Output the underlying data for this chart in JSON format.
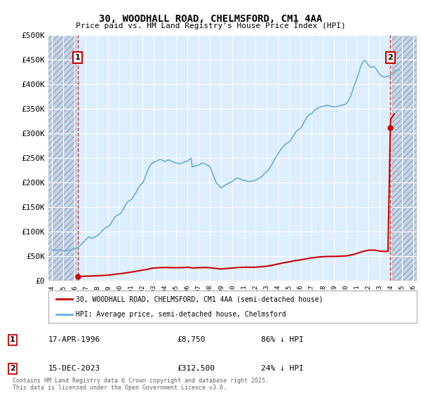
{
  "title": "30, WOODHALL ROAD, CHELMSFORD, CM1 4AA",
  "subtitle": "Price paid vs. HM Land Registry's House Price Index (HPI)",
  "ylim": [
    0,
    500000
  ],
  "yticks": [
    0,
    50000,
    100000,
    150000,
    200000,
    250000,
    300000,
    350000,
    400000,
    450000,
    500000
  ],
  "ytick_labels": [
    "£0",
    "£50K",
    "£100K",
    "£150K",
    "£200K",
    "£250K",
    "£300K",
    "£350K",
    "£400K",
    "£450K",
    "£500K"
  ],
  "xlim_start": 1993.7,
  "xlim_end": 2026.3,
  "left_hatch_end": 1996.2,
  "right_hatch_start": 2024.1,
  "background_color": "#ddeeff",
  "hatch_color": "#c5d5e8",
  "grid_color": "#ffffff",
  "property_color": "#cc0000",
  "hpi_color": "#6aaed6",
  "purchase_points": [
    {
      "year": 1996.29,
      "price": 8750,
      "label": "1"
    },
    {
      "year": 2023.96,
      "price": 312500,
      "label": "2"
    }
  ],
  "annotations": [
    {
      "label": "1",
      "date": "17-APR-1996",
      "price": "£8,750",
      "hpi": "86% ↓ HPI"
    },
    {
      "label": "2",
      "date": "15-DEC-2023",
      "price": "£312,500",
      "hpi": "24% ↓ HPI"
    }
  ],
  "legend_line1": "30, WOODHALL ROAD, CHELMSFORD, CM1 4AA (semi-detached house)",
  "legend_line2": "HPI: Average price, semi-detached house, Chelmsford",
  "copyright_text": "Contains HM Land Registry data © Crown copyright and database right 2025.\nThis data is licensed under the Open Government Licence v3.0.",
  "hpi_data": [
    [
      1994.0,
      64000
    ],
    [
      1994.08,
      63500
    ],
    [
      1994.17,
      63000
    ],
    [
      1994.25,
      62500
    ],
    [
      1994.33,
      62000
    ],
    [
      1994.42,
      62500
    ],
    [
      1994.5,
      63000
    ],
    [
      1994.58,
      63200
    ],
    [
      1994.67,
      63500
    ],
    [
      1994.75,
      63000
    ],
    [
      1994.83,
      62500
    ],
    [
      1994.92,
      62000
    ],
    [
      1995.0,
      61500
    ],
    [
      1995.08,
      61000
    ],
    [
      1995.17,
      61200
    ],
    [
      1995.25,
      61800
    ],
    [
      1995.33,
      62000
    ],
    [
      1995.42,
      62200
    ],
    [
      1995.5,
      62500
    ],
    [
      1995.58,
      63000
    ],
    [
      1995.67,
      63500
    ],
    [
      1995.75,
      64000
    ],
    [
      1995.83,
      64500
    ],
    [
      1995.92,
      65000
    ],
    [
      1996.0,
      65500
    ],
    [
      1996.08,
      66000
    ],
    [
      1996.17,
      67000
    ],
    [
      1996.25,
      68000
    ],
    [
      1996.33,
      69000
    ],
    [
      1996.42,
      70500
    ],
    [
      1996.5,
      72000
    ],
    [
      1996.58,
      74000
    ],
    [
      1996.67,
      76000
    ],
    [
      1996.75,
      78000
    ],
    [
      1996.83,
      80000
    ],
    [
      1996.92,
      82000
    ],
    [
      1997.0,
      84000
    ],
    [
      1997.08,
      86000
    ],
    [
      1997.17,
      88000
    ],
    [
      1997.25,
      90000
    ],
    [
      1997.33,
      89000
    ],
    [
      1997.42,
      88000
    ],
    [
      1997.5,
      87000
    ],
    [
      1997.58,
      87500
    ],
    [
      1997.67,
      88000
    ],
    [
      1997.75,
      89000
    ],
    [
      1997.83,
      90000
    ],
    [
      1997.92,
      91000
    ],
    [
      1998.0,
      92000
    ],
    [
      1998.08,
      93500
    ],
    [
      1998.17,
      95000
    ],
    [
      1998.25,
      97000
    ],
    [
      1998.33,
      99000
    ],
    [
      1998.42,
      101000
    ],
    [
      1998.5,
      103000
    ],
    [
      1998.58,
      105000
    ],
    [
      1998.67,
      107000
    ],
    [
      1998.75,
      108000
    ],
    [
      1998.83,
      109000
    ],
    [
      1998.92,
      110000
    ],
    [
      1999.0,
      111000
    ],
    [
      1999.08,
      113000
    ],
    [
      1999.17,
      115000
    ],
    [
      1999.25,
      118000
    ],
    [
      1999.33,
      121000
    ],
    [
      1999.42,
      124000
    ],
    [
      1999.5,
      127000
    ],
    [
      1999.58,
      130000
    ],
    [
      1999.67,
      132000
    ],
    [
      1999.75,
      133000
    ],
    [
      1999.83,
      134000
    ],
    [
      1999.92,
      135000
    ],
    [
      2000.0,
      136000
    ],
    [
      2000.08,
      138000
    ],
    [
      2000.17,
      140000
    ],
    [
      2000.25,
      143000
    ],
    [
      2000.33,
      146000
    ],
    [
      2000.42,
      150000
    ],
    [
      2000.5,
      154000
    ],
    [
      2000.58,
      157000
    ],
    [
      2000.67,
      160000
    ],
    [
      2000.75,
      162000
    ],
    [
      2000.83,
      163000
    ],
    [
      2000.92,
      164000
    ],
    [
      2001.0,
      165000
    ],
    [
      2001.08,
      167000
    ],
    [
      2001.17,
      170000
    ],
    [
      2001.25,
      173000
    ],
    [
      2001.33,
      176000
    ],
    [
      2001.42,
      179000
    ],
    [
      2001.5,
      182000
    ],
    [
      2001.58,
      186000
    ],
    [
      2001.67,
      190000
    ],
    [
      2001.75,
      193000
    ],
    [
      2001.83,
      195000
    ],
    [
      2001.92,
      197000
    ],
    [
      2002.0,
      199000
    ],
    [
      2002.08,
      202000
    ],
    [
      2002.17,
      206000
    ],
    [
      2002.25,
      211000
    ],
    [
      2002.33,
      216000
    ],
    [
      2002.42,
      221000
    ],
    [
      2002.5,
      226000
    ],
    [
      2002.58,
      230000
    ],
    [
      2002.67,
      234000
    ],
    [
      2002.75,
      237000
    ],
    [
      2002.83,
      239000
    ],
    [
      2002.92,
      240000
    ],
    [
      2003.0,
      241000
    ],
    [
      2003.08,
      242000
    ],
    [
      2003.17,
      243000
    ],
    [
      2003.25,
      244000
    ],
    [
      2003.33,
      245000
    ],
    [
      2003.42,
      246000
    ],
    [
      2003.5,
      247000
    ],
    [
      2003.58,
      247500
    ],
    [
      2003.67,
      247000
    ],
    [
      2003.75,
      246000
    ],
    [
      2003.83,
      245000
    ],
    [
      2003.92,
      244000
    ],
    [
      2004.0,
      243000
    ],
    [
      2004.08,
      244000
    ],
    [
      2004.17,
      245000
    ],
    [
      2004.25,
      246000
    ],
    [
      2004.33,
      246500
    ],
    [
      2004.42,
      246000
    ],
    [
      2004.5,
      245000
    ],
    [
      2004.58,
      244000
    ],
    [
      2004.67,
      243000
    ],
    [
      2004.75,
      242000
    ],
    [
      2004.83,
      241500
    ],
    [
      2004.92,
      241000
    ],
    [
      2005.0,
      240500
    ],
    [
      2005.08,
      240000
    ],
    [
      2005.17,
      239500
    ],
    [
      2005.25,
      239000
    ],
    [
      2005.33,
      238500
    ],
    [
      2005.42,
      239000
    ],
    [
      2005.5,
      240000
    ],
    [
      2005.58,
      241000
    ],
    [
      2005.67,
      242000
    ],
    [
      2005.75,
      242500
    ],
    [
      2005.83,
      243000
    ],
    [
      2005.92,
      243500
    ],
    [
      2006.0,
      244000
    ],
    [
      2006.08,
      245500
    ],
    [
      2006.17,
      247000
    ],
    [
      2006.25,
      248500
    ],
    [
      2006.33,
      250000
    ],
    [
      2006.42,
      232000
    ],
    [
      2006.5,
      233000
    ],
    [
      2006.58,
      233500
    ],
    [
      2006.67,
      234000
    ],
    [
      2006.75,
      234500
    ],
    [
      2006.83,
      235000
    ],
    [
      2006.92,
      235500
    ],
    [
      2007.0,
      236000
    ],
    [
      2007.08,
      237000
    ],
    [
      2007.17,
      238000
    ],
    [
      2007.25,
      239000
    ],
    [
      2007.33,
      240000
    ],
    [
      2007.42,
      239500
    ],
    [
      2007.5,
      239000
    ],
    [
      2007.58,
      238000
    ],
    [
      2007.67,
      237000
    ],
    [
      2007.75,
      236000
    ],
    [
      2007.83,
      235000
    ],
    [
      2007.92,
      234000
    ],
    [
      2008.0,
      233000
    ],
    [
      2008.08,
      228000
    ],
    [
      2008.17,
      223000
    ],
    [
      2008.25,
      218000
    ],
    [
      2008.33,
      213000
    ],
    [
      2008.42,
      208000
    ],
    [
      2008.5,
      203000
    ],
    [
      2008.58,
      200000
    ],
    [
      2008.67,
      197000
    ],
    [
      2008.75,
      195000
    ],
    [
      2008.83,
      193000
    ],
    [
      2008.92,
      191500
    ],
    [
      2009.0,
      190000
    ],
    [
      2009.08,
      191000
    ],
    [
      2009.17,
      192500
    ],
    [
      2009.25,
      194000
    ],
    [
      2009.33,
      195000
    ],
    [
      2009.42,
      196000
    ],
    [
      2009.5,
      197000
    ],
    [
      2009.58,
      198000
    ],
    [
      2009.67,
      199000
    ],
    [
      2009.75,
      200000
    ],
    [
      2009.83,
      201000
    ],
    [
      2009.92,
      202000
    ],
    [
      2010.0,
      203000
    ],
    [
      2010.08,
      205000
    ],
    [
      2010.17,
      207000
    ],
    [
      2010.25,
      208000
    ],
    [
      2010.33,
      209000
    ],
    [
      2010.42,
      209500
    ],
    [
      2010.5,
      209000
    ],
    [
      2010.58,
      208500
    ],
    [
      2010.67,
      208000
    ],
    [
      2010.75,
      207000
    ],
    [
      2010.83,
      206000
    ],
    [
      2010.92,
      205500
    ],
    [
      2011.0,
      205000
    ],
    [
      2011.08,
      204500
    ],
    [
      2011.17,
      204000
    ],
    [
      2011.25,
      203500
    ],
    [
      2011.33,
      203000
    ],
    [
      2011.42,
      202500
    ],
    [
      2011.5,
      202000
    ],
    [
      2011.58,
      202500
    ],
    [
      2011.67,
      203000
    ],
    [
      2011.75,
      203500
    ],
    [
      2011.83,
      204000
    ],
    [
      2011.92,
      204500
    ],
    [
      2012.0,
      205000
    ],
    [
      2012.08,
      206000
    ],
    [
      2012.17,
      207000
    ],
    [
      2012.25,
      208000
    ],
    [
      2012.33,
      209000
    ],
    [
      2012.42,
      210000
    ],
    [
      2012.5,
      211000
    ],
    [
      2012.58,
      213000
    ],
    [
      2012.67,
      215000
    ],
    [
      2012.75,
      217000
    ],
    [
      2012.83,
      219000
    ],
    [
      2012.92,
      221000
    ],
    [
      2013.0,
      222000
    ],
    [
      2013.08,
      224000
    ],
    [
      2013.17,
      226000
    ],
    [
      2013.25,
      229000
    ],
    [
      2013.33,
      232000
    ],
    [
      2013.42,
      235000
    ],
    [
      2013.5,
      238000
    ],
    [
      2013.58,
      242000
    ],
    [
      2013.67,
      246000
    ],
    [
      2013.75,
      249000
    ],
    [
      2013.83,
      252000
    ],
    [
      2013.92,
      255000
    ],
    [
      2014.0,
      258000
    ],
    [
      2014.08,
      261000
    ],
    [
      2014.17,
      264000
    ],
    [
      2014.25,
      267000
    ],
    [
      2014.33,
      270000
    ],
    [
      2014.42,
      272000
    ],
    [
      2014.5,
      274000
    ],
    [
      2014.58,
      276000
    ],
    [
      2014.67,
      278000
    ],
    [
      2014.75,
      280000
    ],
    [
      2014.83,
      281000
    ],
    [
      2014.92,
      282000
    ],
    [
      2015.0,
      283000
    ],
    [
      2015.08,
      285000
    ],
    [
      2015.17,
      288000
    ],
    [
      2015.25,
      291000
    ],
    [
      2015.33,
      294000
    ],
    [
      2015.42,
      297000
    ],
    [
      2015.5,
      300000
    ],
    [
      2015.58,
      303000
    ],
    [
      2015.67,
      305000
    ],
    [
      2015.75,
      307000
    ],
    [
      2015.83,
      308000
    ],
    [
      2015.92,
      309000
    ],
    [
      2016.0,
      310000
    ],
    [
      2016.08,
      313000
    ],
    [
      2016.17,
      316000
    ],
    [
      2016.25,
      320000
    ],
    [
      2016.33,
      324000
    ],
    [
      2016.42,
      327000
    ],
    [
      2016.5,
      330000
    ],
    [
      2016.58,
      333000
    ],
    [
      2016.67,
      336000
    ],
    [
      2016.75,
      338000
    ],
    [
      2016.83,
      339000
    ],
    [
      2016.92,
      340000
    ],
    [
      2017.0,
      341000
    ],
    [
      2017.08,
      343000
    ],
    [
      2017.17,
      345000
    ],
    [
      2017.25,
      347000
    ],
    [
      2017.33,
      349000
    ],
    [
      2017.42,
      350000
    ],
    [
      2017.5,
      351000
    ],
    [
      2017.58,
      352000
    ],
    [
      2017.67,
      353000
    ],
    [
      2017.75,
      354000
    ],
    [
      2017.83,
      354500
    ],
    [
      2017.92,
      355000
    ],
    [
      2018.0,
      355500
    ],
    [
      2018.08,
      356000
    ],
    [
      2018.17,
      356500
    ],
    [
      2018.25,
      357000
    ],
    [
      2018.33,
      357500
    ],
    [
      2018.42,
      357500
    ],
    [
      2018.5,
      357000
    ],
    [
      2018.58,
      356500
    ],
    [
      2018.67,
      356000
    ],
    [
      2018.75,
      355500
    ],
    [
      2018.83,
      355000
    ],
    [
      2018.92,
      354500
    ],
    [
      2019.0,
      354000
    ],
    [
      2019.08,
      354500
    ],
    [
      2019.17,
      355000
    ],
    [
      2019.25,
      355500
    ],
    [
      2019.33,
      356000
    ],
    [
      2019.42,
      356500
    ],
    [
      2019.5,
      357000
    ],
    [
      2019.58,
      357500
    ],
    [
      2019.67,
      358000
    ],
    [
      2019.75,
      358500
    ],
    [
      2019.83,
      359000
    ],
    [
      2019.92,
      359500
    ],
    [
      2020.0,
      360000
    ],
    [
      2020.08,
      362000
    ],
    [
      2020.17,
      364000
    ],
    [
      2020.25,
      367000
    ],
    [
      2020.33,
      371000
    ],
    [
      2020.42,
      375000
    ],
    [
      2020.5,
      380000
    ],
    [
      2020.58,
      385000
    ],
    [
      2020.67,
      391000
    ],
    [
      2020.75,
      397000
    ],
    [
      2020.83,
      402000
    ],
    [
      2020.92,
      407000
    ],
    [
      2021.0,
      412000
    ],
    [
      2021.08,
      418000
    ],
    [
      2021.17,
      424000
    ],
    [
      2021.25,
      430000
    ],
    [
      2021.33,
      436000
    ],
    [
      2021.42,
      441000
    ],
    [
      2021.5,
      445000
    ],
    [
      2021.58,
      448000
    ],
    [
      2021.67,
      449000
    ],
    [
      2021.75,
      448000
    ],
    [
      2021.83,
      446000
    ],
    [
      2021.92,
      443000
    ],
    [
      2022.0,
      440000
    ],
    [
      2022.08,
      438000
    ],
    [
      2022.17,
      436000
    ],
    [
      2022.25,
      435000
    ],
    [
      2022.33,
      435500
    ],
    [
      2022.42,
      436000
    ],
    [
      2022.5,
      436500
    ],
    [
      2022.58,
      435000
    ],
    [
      2022.67,
      433000
    ],
    [
      2022.75,
      430000
    ],
    [
      2022.83,
      427000
    ],
    [
      2022.92,
      424000
    ],
    [
      2023.0,
      421000
    ],
    [
      2023.08,
      419000
    ],
    [
      2023.17,
      418000
    ],
    [
      2023.25,
      417000
    ],
    [
      2023.33,
      416000
    ],
    [
      2023.42,
      415000
    ],
    [
      2023.5,
      415500
    ],
    [
      2023.58,
      416000
    ],
    [
      2023.67,
      416500
    ],
    [
      2023.75,
      417000
    ],
    [
      2023.83,
      417500
    ],
    [
      2023.92,
      418000
    ],
    [
      2024.0,
      419000
    ],
    [
      2024.08,
      421000
    ],
    [
      2024.17,
      423000
    ],
    [
      2024.25,
      425000
    ],
    [
      2024.33,
      427000
    ],
    [
      2024.42,
      428000
    ],
    [
      2024.5,
      428500
    ],
    [
      2024.58,
      429000
    ],
    [
      2024.67,
      429500
    ],
    [
      2024.75,
      430000
    ]
  ],
  "prop_data": [
    [
      1996.29,
      8750
    ],
    [
      1996.5,
      9200
    ],
    [
      1997.0,
      9800
    ],
    [
      1997.5,
      10100
    ],
    [
      1998.0,
      10700
    ],
    [
      1998.5,
      11200
    ],
    [
      1999.0,
      12000
    ],
    [
      1999.5,
      13500
    ],
    [
      2000.0,
      14800
    ],
    [
      2000.5,
      16200
    ],
    [
      2001.0,
      18000
    ],
    [
      2001.5,
      20000
    ],
    [
      2002.0,
      22000
    ],
    [
      2002.5,
      24000
    ],
    [
      2003.0,
      26500
    ],
    [
      2003.5,
      27000
    ],
    [
      2004.0,
      27500
    ],
    [
      2004.5,
      27200
    ],
    [
      2005.0,
      27000
    ],
    [
      2005.5,
      27200
    ],
    [
      2006.0,
      28000
    ],
    [
      2006.5,
      26500
    ],
    [
      2007.0,
      27000
    ],
    [
      2007.5,
      27500
    ],
    [
      2008.0,
      27000
    ],
    [
      2008.5,
      25500
    ],
    [
      2009.0,
      24500
    ],
    [
      2009.5,
      25500
    ],
    [
      2010.0,
      26500
    ],
    [
      2010.5,
      27500
    ],
    [
      2011.0,
      28000
    ],
    [
      2011.5,
      28000
    ],
    [
      2012.0,
      28000
    ],
    [
      2012.5,
      29000
    ],
    [
      2013.0,
      30000
    ],
    [
      2013.5,
      32000
    ],
    [
      2014.0,
      34500
    ],
    [
      2014.5,
      37000
    ],
    [
      2015.0,
      39000
    ],
    [
      2015.5,
      41500
    ],
    [
      2016.0,
      43000
    ],
    [
      2016.5,
      45000
    ],
    [
      2017.0,
      47000
    ],
    [
      2017.5,
      48500
    ],
    [
      2018.0,
      49500
    ],
    [
      2018.5,
      50000
    ],
    [
      2019.0,
      50000
    ],
    [
      2019.5,
      50500
    ],
    [
      2020.0,
      51000
    ],
    [
      2020.5,
      53000
    ],
    [
      2021.0,
      56000
    ],
    [
      2021.5,
      60000
    ],
    [
      2022.0,
      62500
    ],
    [
      2022.5,
      63000
    ],
    [
      2023.0,
      61000
    ],
    [
      2023.5,
      60000
    ],
    [
      2023.75,
      60500
    ],
    [
      2023.96,
      312500
    ],
    [
      2024.0,
      330000
    ],
    [
      2024.3,
      340000
    ]
  ]
}
